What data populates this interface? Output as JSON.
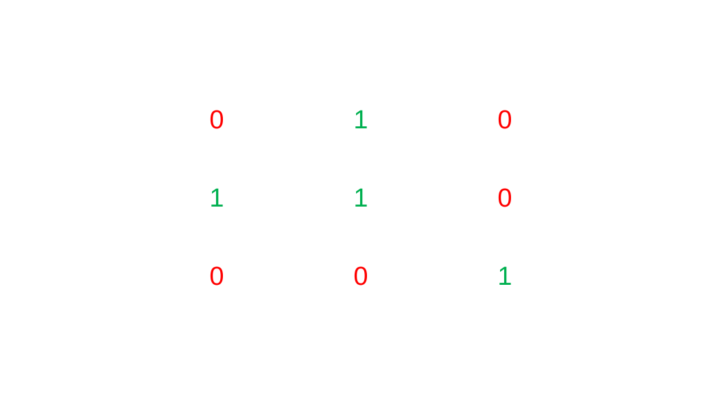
{
  "colors": {
    "zero": "#ff0000",
    "one": "#00b050",
    "background": "#ffffff"
  },
  "matrix": {
    "rows": [
      [
        "0",
        "1",
        "0"
      ],
      [
        "1",
        "1",
        "0"
      ],
      [
        "0",
        "0",
        "1"
      ]
    ]
  }
}
